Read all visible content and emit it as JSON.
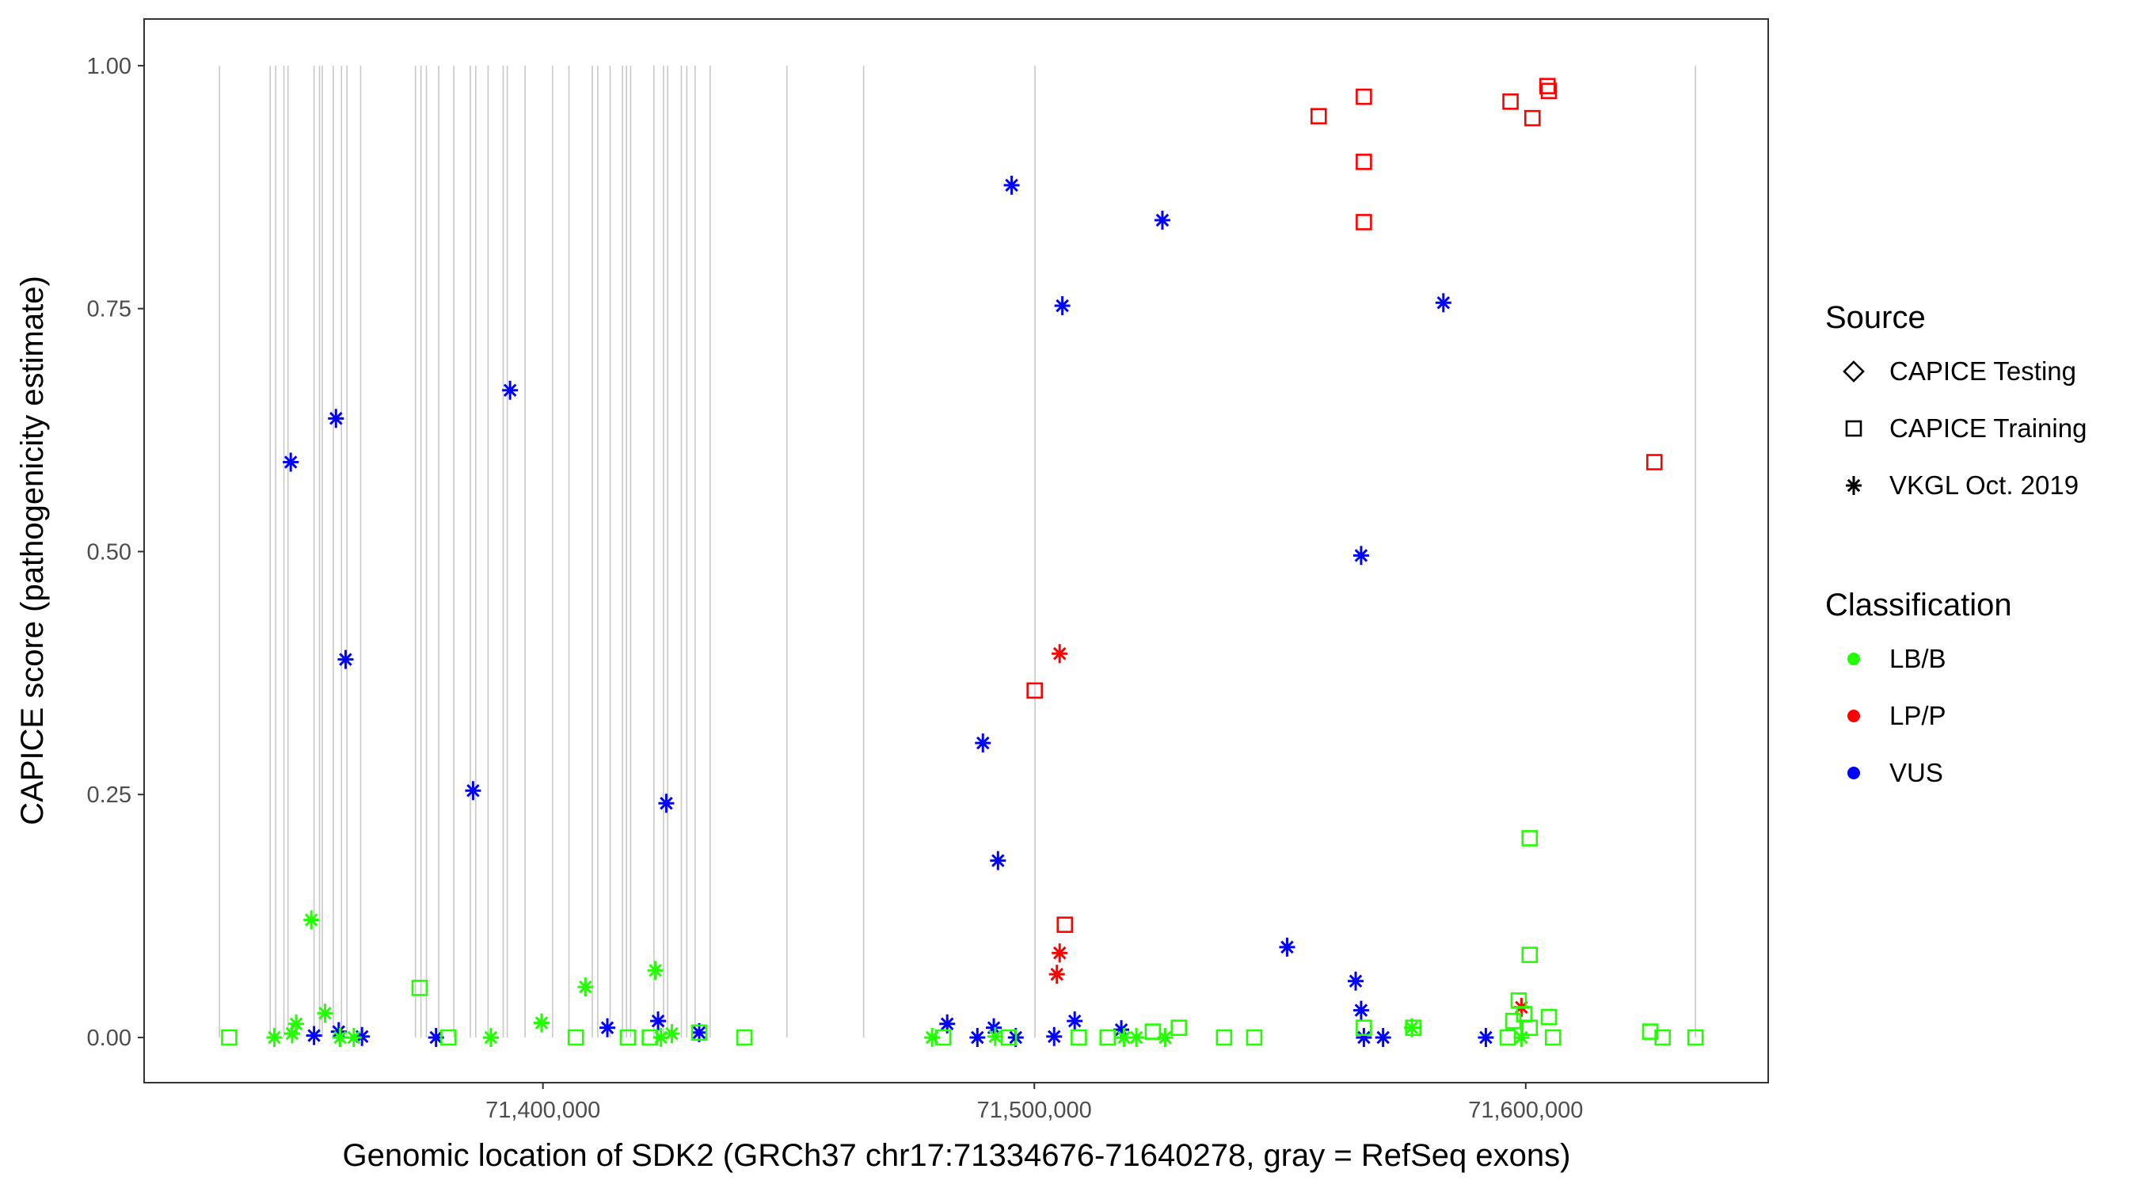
{
  "chart_data": {
    "type": "scatter",
    "xlabel": "Genomic location of SDK2 (GRCh37 chr17:71334676-71640278, gray = RefSeq exons)",
    "ylabel": "CAPICE score (pathogenicity estimate)",
    "xlim": [
      71318840,
      71649340
    ],
    "ylim": [
      -0.0465,
      1.048
    ],
    "x_ticks": [
      71400000,
      71500000,
      71600000
    ],
    "x_tick_labels": [
      "71,400,000",
      "71,500,000",
      "71,600,000"
    ],
    "y_ticks": [
      0,
      0.25,
      0.5,
      0.75,
      1.0
    ],
    "y_tick_labels": [
      "0.00",
      "0.25",
      "0.50",
      "0.75",
      "1.00"
    ],
    "grid": false,
    "exons": [
      71334180,
      71344500,
      71345610,
      71347290,
      71348120,
      71353420,
      71354540,
      71355100,
      71357330,
      71359000,
      71360120,
      71362910,
      71374060,
      71375180,
      71376290,
      71378800,
      71381870,
      71385220,
      71386330,
      71388840,
      71391910,
      71392750,
      71396370,
      71401950,
      71405300,
      71410040,
      71411160,
      71413670,
      71416180,
      71417010,
      71417850,
      71422590,
      71424540,
      71425380,
      71428170,
      71429280,
      71430960,
      71434030,
      71449640,
      71465260,
      71500130,
      71634540
    ],
    "exon_color": "#c8c8c8",
    "legend_placement": "right",
    "legend": {
      "source_title": "Source",
      "sources": [
        {
          "label": "CAPICE Testing",
          "shape": "diamond"
        },
        {
          "label": "CAPICE Training",
          "shape": "square"
        },
        {
          "label": "VKGL Oct. 2019",
          "shape": "asterisk"
        }
      ],
      "class_title": "Classification",
      "classes": [
        {
          "label": "LB/B",
          "color": "#22ff00"
        },
        {
          "label": "LP/P",
          "color": "#ff0000"
        },
        {
          "label": "VUS",
          "color": "#0000ff"
        }
      ]
    },
    "series": [
      {
        "source": "VKGL Oct. 2019",
        "class": "VUS",
        "shape": "asterisk",
        "color": "#0000ff",
        "x": [
          71348680,
          71357880,
          71359840,
          71385780,
          71393310,
          71425100,
          71495380,
          71505700,
          71526060,
          71489530,
          71492600,
          71583240,
          71566500,
          71551440,
          71565390,
          71566500,
          71353420,
          71358440,
          71363180,
          71378250,
          71413110,
          71423430,
          71431800,
          71482270,
          71488410,
          71491750,
          71496220,
          71504030,
          71508210,
          71517700,
          71567060,
          71570970,
          71591880
        ],
        "y": [
          0.592,
          0.637,
          0.389,
          0.254,
          0.666,
          0.241,
          0.877,
          0.753,
          0.841,
          0.303,
          0.182,
          0.756,
          0.496,
          0.093,
          0.058,
          0.028,
          0.002,
          0.006,
          0.001,
          0,
          0.01,
          0.017,
          0.005,
          0.014,
          0,
          0.01,
          0,
          0.001,
          0.017,
          0.008,
          0,
          0,
          0
        ]
      },
      {
        "source": "VKGL Oct. 2019",
        "class": "LP/P",
        "shape": "asterisk",
        "color": "#ff0000",
        "x": [
          71505150,
          71505150,
          71504590,
          71599130
        ],
        "y": [
          0.395,
          0.087,
          0.065,
          0.031
        ]
      },
      {
        "source": "VKGL Oct. 2019",
        "class": "LB/B",
        "shape": "asterisk",
        "color": "#22ff00",
        "x": [
          71352870,
          71355660,
          71349800,
          71345340,
          71348960,
          71358720,
          71361510,
          71389400,
          71399720,
          71408650,
          71422870,
          71424020,
          71426220,
          71479200,
          71492030,
          71518260,
          71520770,
          71526620,
          71576820,
          71599130
        ],
        "y": [
          0.121,
          0.025,
          0.014,
          0,
          0.004,
          0,
          0,
          0,
          0.015,
          0.052,
          0.069,
          0,
          0.004,
          0,
          0.001,
          0,
          0,
          0,
          0.01,
          0
        ]
      },
      {
        "source": "CAPICE Training",
        "class": "LP/P",
        "shape": "square",
        "color": "#ff0000",
        "x": [
          71557860,
          71567060,
          71567060,
          71567060,
          71596900,
          71601360,
          71604430,
          71604710,
          71626180,
          71500070,
          71506210
        ],
        "y": [
          0.948,
          0.968,
          0.901,
          0.839,
          0.963,
          0.946,
          0.979,
          0.974,
          0.592,
          0.357,
          0.116
        ]
      },
      {
        "source": "CAPICE Training",
        "class": "LB/B",
        "shape": "square",
        "color": "#22ff00",
        "x": [
          71336160,
          71374910,
          71380770,
          71406690,
          71417290,
          71421750,
          71431800,
          71441000,
          71481440,
          71494830,
          71509050,
          71514910,
          71524110,
          71529410,
          71538610,
          71544740,
          71567060,
          71577100,
          71596340,
          71597460,
          71598570,
          71599690,
          71600800,
          71600800,
          71600800,
          71604710,
          71605550,
          71625340,
          71627850,
          71634540
        ],
        "y": [
          0,
          0.051,
          0,
          0,
          0,
          0,
          0.005,
          0,
          0,
          0,
          0,
          0,
          0.006,
          0.01,
          0,
          0,
          0.01,
          0.01,
          0,
          0.017,
          0.038,
          0.024,
          0.205,
          0.085,
          0.01,
          0.021,
          0,
          0.006,
          0,
          0
        ]
      }
    ]
  }
}
